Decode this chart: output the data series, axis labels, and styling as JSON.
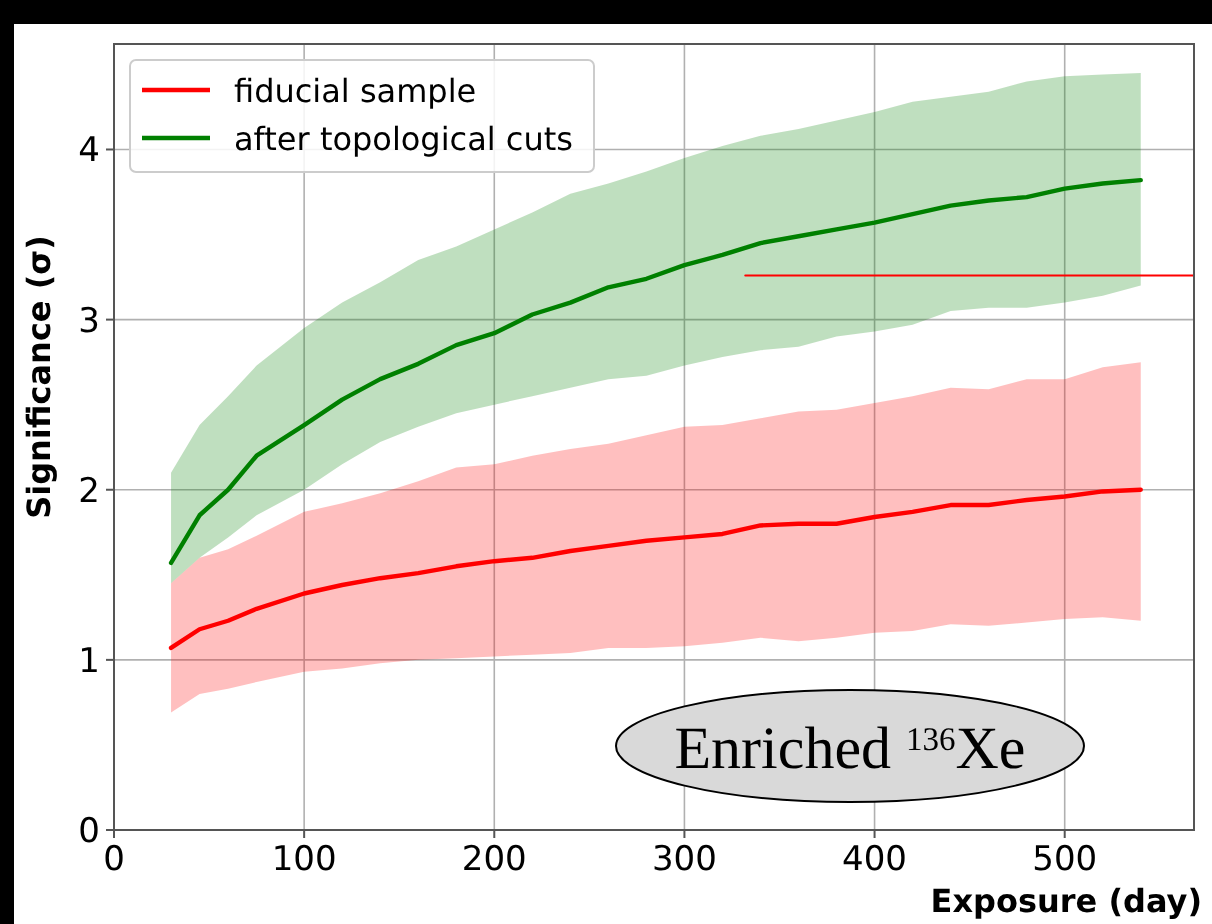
{
  "chart_data": {
    "type": "line",
    "xlabel": "Exposure (day)",
    "ylabel": "Significance (σ)",
    "x": [
      30,
      45,
      60,
      75,
      100,
      120,
      140,
      160,
      180,
      200,
      220,
      240,
      260,
      280,
      300,
      320,
      340,
      360,
      380,
      400,
      420,
      440,
      460,
      480,
      500,
      520,
      540
    ],
    "xlim": [
      0,
      568
    ],
    "xticks": [
      0,
      100,
      200,
      300,
      400,
      500
    ],
    "ylim": [
      0,
      4.62
    ],
    "yticks": [
      0,
      1,
      2,
      3,
      4
    ],
    "series": [
      {
        "name": "fiducial sample",
        "color": "#ff0000",
        "values": [
          1.07,
          1.18,
          1.23,
          1.3,
          1.39,
          1.44,
          1.48,
          1.51,
          1.55,
          1.58,
          1.6,
          1.64,
          1.67,
          1.7,
          1.72,
          1.74,
          1.79,
          1.8,
          1.8,
          1.84,
          1.87,
          1.91,
          1.91,
          1.94,
          1.96,
          1.99,
          2.0
        ],
        "lower": [
          0.69,
          0.8,
          0.83,
          0.87,
          0.93,
          0.95,
          0.98,
          1.0,
          1.01,
          1.02,
          1.03,
          1.04,
          1.07,
          1.07,
          1.08,
          1.1,
          1.13,
          1.11,
          1.13,
          1.16,
          1.17,
          1.21,
          1.2,
          1.22,
          1.24,
          1.25,
          1.23
        ],
        "upper": [
          1.45,
          1.6,
          1.65,
          1.73,
          1.87,
          1.92,
          1.98,
          2.05,
          2.13,
          2.15,
          2.2,
          2.24,
          2.27,
          2.32,
          2.37,
          2.38,
          2.42,
          2.46,
          2.47,
          2.51,
          2.55,
          2.6,
          2.59,
          2.65,
          2.65,
          2.72,
          2.75
        ]
      },
      {
        "name": "after topological cuts",
        "color": "#008000",
        "values": [
          1.57,
          1.85,
          2.0,
          2.2,
          2.38,
          2.53,
          2.65,
          2.74,
          2.85,
          2.92,
          3.03,
          3.1,
          3.19,
          3.24,
          3.32,
          3.38,
          3.45,
          3.49,
          3.53,
          3.57,
          3.62,
          3.67,
          3.7,
          3.72,
          3.77,
          3.8,
          3.82
        ],
        "lower": [
          1.45,
          1.6,
          1.72,
          1.85,
          2.0,
          2.15,
          2.28,
          2.37,
          2.45,
          2.5,
          2.55,
          2.6,
          2.65,
          2.67,
          2.73,
          2.78,
          2.82,
          2.84,
          2.9,
          2.93,
          2.97,
          3.05,
          3.07,
          3.07,
          3.1,
          3.14,
          3.2
        ],
        "upper": [
          2.1,
          2.38,
          2.55,
          2.73,
          2.95,
          3.1,
          3.22,
          3.35,
          3.43,
          3.53,
          3.63,
          3.74,
          3.8,
          3.87,
          3.95,
          4.02,
          4.08,
          4.12,
          4.17,
          4.22,
          4.28,
          4.31,
          4.34,
          4.4,
          4.43,
          4.44,
          4.45
        ]
      },
      {
        "type": "line",
        "color": "#ff0000",
        "x": [
          332,
          568
        ],
        "values": [
          3.26,
          3.26
        ]
      }
    ],
    "annotations": [
      "Enriched $^{136}$Xe"
    ],
    "grid": true,
    "legend": "top left",
    "marker": "none",
    "line_style": "solid"
  }
}
